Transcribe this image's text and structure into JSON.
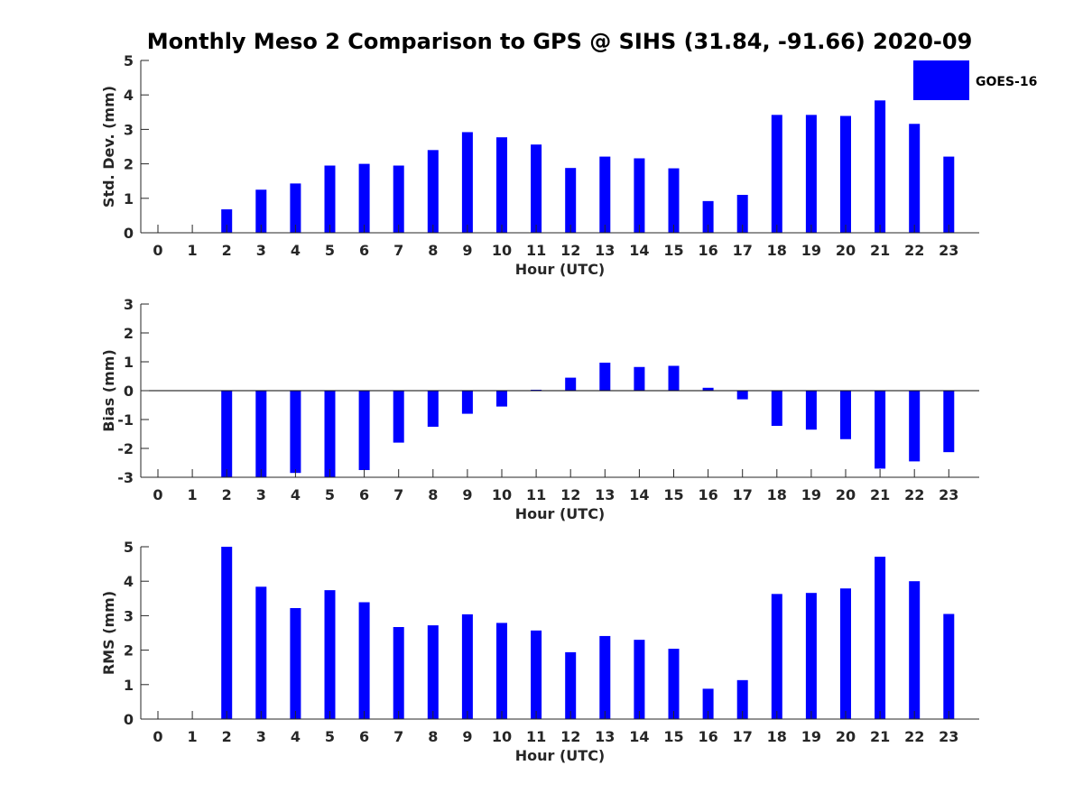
{
  "title": "Monthly Meso 2 Comparison to GPS @ SIHS (31.84, -91.66) 2020-09",
  "legend": {
    "label": "GOES-16",
    "position": "top-right"
  },
  "colors": {
    "bar": "#0000ff",
    "axis": "#262626",
    "zero_line": "#000000"
  },
  "chart_data": [
    {
      "type": "bar",
      "xlabel": "Hour (UTC)",
      "ylabel": "Std. Dev. (mm)",
      "ylim": [
        0,
        5
      ],
      "yticks": [
        "0",
        "1",
        "2",
        "3",
        "4",
        "5"
      ],
      "categories": [
        "0",
        "1",
        "2",
        "3",
        "4",
        "5",
        "6",
        "7",
        "8",
        "9",
        "10",
        "11",
        "12",
        "13",
        "14",
        "15",
        "16",
        "17",
        "18",
        "19",
        "20",
        "21",
        "22",
        "23"
      ],
      "series": [
        {
          "name": "GOES-16",
          "values": [
            null,
            null,
            0.68,
            1.25,
            1.43,
            1.95,
            2.0,
            1.95,
            2.4,
            2.92,
            2.77,
            2.56,
            1.88,
            2.21,
            2.16,
            1.87,
            0.92,
            1.1,
            3.42,
            3.42,
            3.39,
            3.84,
            3.16,
            2.21
          ]
        }
      ],
      "grid": false
    },
    {
      "type": "bar",
      "xlabel": "Hour (UTC)",
      "ylabel": "Bias (mm)",
      "ylim": [
        -3,
        3
      ],
      "yticks": [
        "-3",
        "-2",
        "-1",
        "0",
        "1",
        "2",
        "3"
      ],
      "categories": [
        "0",
        "1",
        "2",
        "3",
        "4",
        "5",
        "6",
        "7",
        "8",
        "9",
        "10",
        "11",
        "12",
        "13",
        "14",
        "15",
        "16",
        "17",
        "18",
        "19",
        "20",
        "21",
        "22",
        "23"
      ],
      "series": [
        {
          "name": "GOES-16",
          "values": [
            null,
            null,
            -3.0,
            -3.0,
            -2.85,
            -3.0,
            -2.75,
            -1.8,
            -1.25,
            -0.8,
            -0.55,
            0.03,
            0.45,
            0.97,
            0.82,
            0.86,
            0.1,
            -0.3,
            -1.22,
            -1.35,
            -1.68,
            -2.7,
            -2.45,
            -2.13
          ]
        }
      ],
      "grid": false
    },
    {
      "type": "bar",
      "xlabel": "Hour (UTC)",
      "ylabel": "RMS (mm)",
      "ylim": [
        0,
        5
      ],
      "yticks": [
        "0",
        "1",
        "2",
        "3",
        "4",
        "5"
      ],
      "categories": [
        "0",
        "1",
        "2",
        "3",
        "4",
        "5",
        "6",
        "7",
        "8",
        "9",
        "10",
        "11",
        "12",
        "13",
        "14",
        "15",
        "16",
        "17",
        "18",
        "19",
        "20",
        "21",
        "22",
        "23"
      ],
      "series": [
        {
          "name": "GOES-16",
          "values": [
            null,
            null,
            5.0,
            3.84,
            3.22,
            3.74,
            3.39,
            2.67,
            2.72,
            3.04,
            2.79,
            2.57,
            1.94,
            2.41,
            2.3,
            2.04,
            0.88,
            1.13,
            3.63,
            3.66,
            3.79,
            4.71,
            4.0,
            3.05
          ]
        }
      ],
      "grid": false
    }
  ]
}
